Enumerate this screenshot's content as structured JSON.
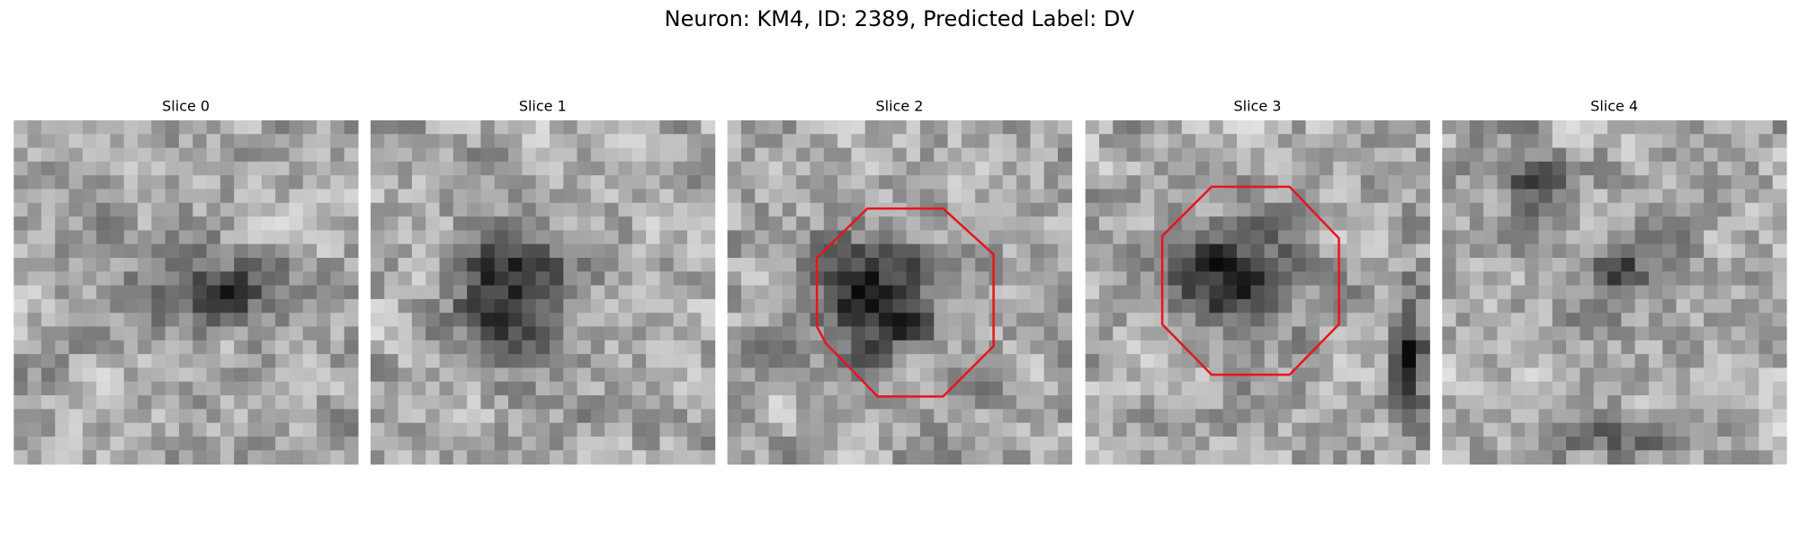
{
  "title": "Neuron: KM4, ID: 2389, Predicted Label: DV",
  "panels": [
    {
      "title": "Slice 0"
    },
    {
      "title": "Slice 1"
    },
    {
      "title": "Slice 2"
    },
    {
      "title": "Slice 3"
    },
    {
      "title": "Slice 4"
    }
  ]
}
